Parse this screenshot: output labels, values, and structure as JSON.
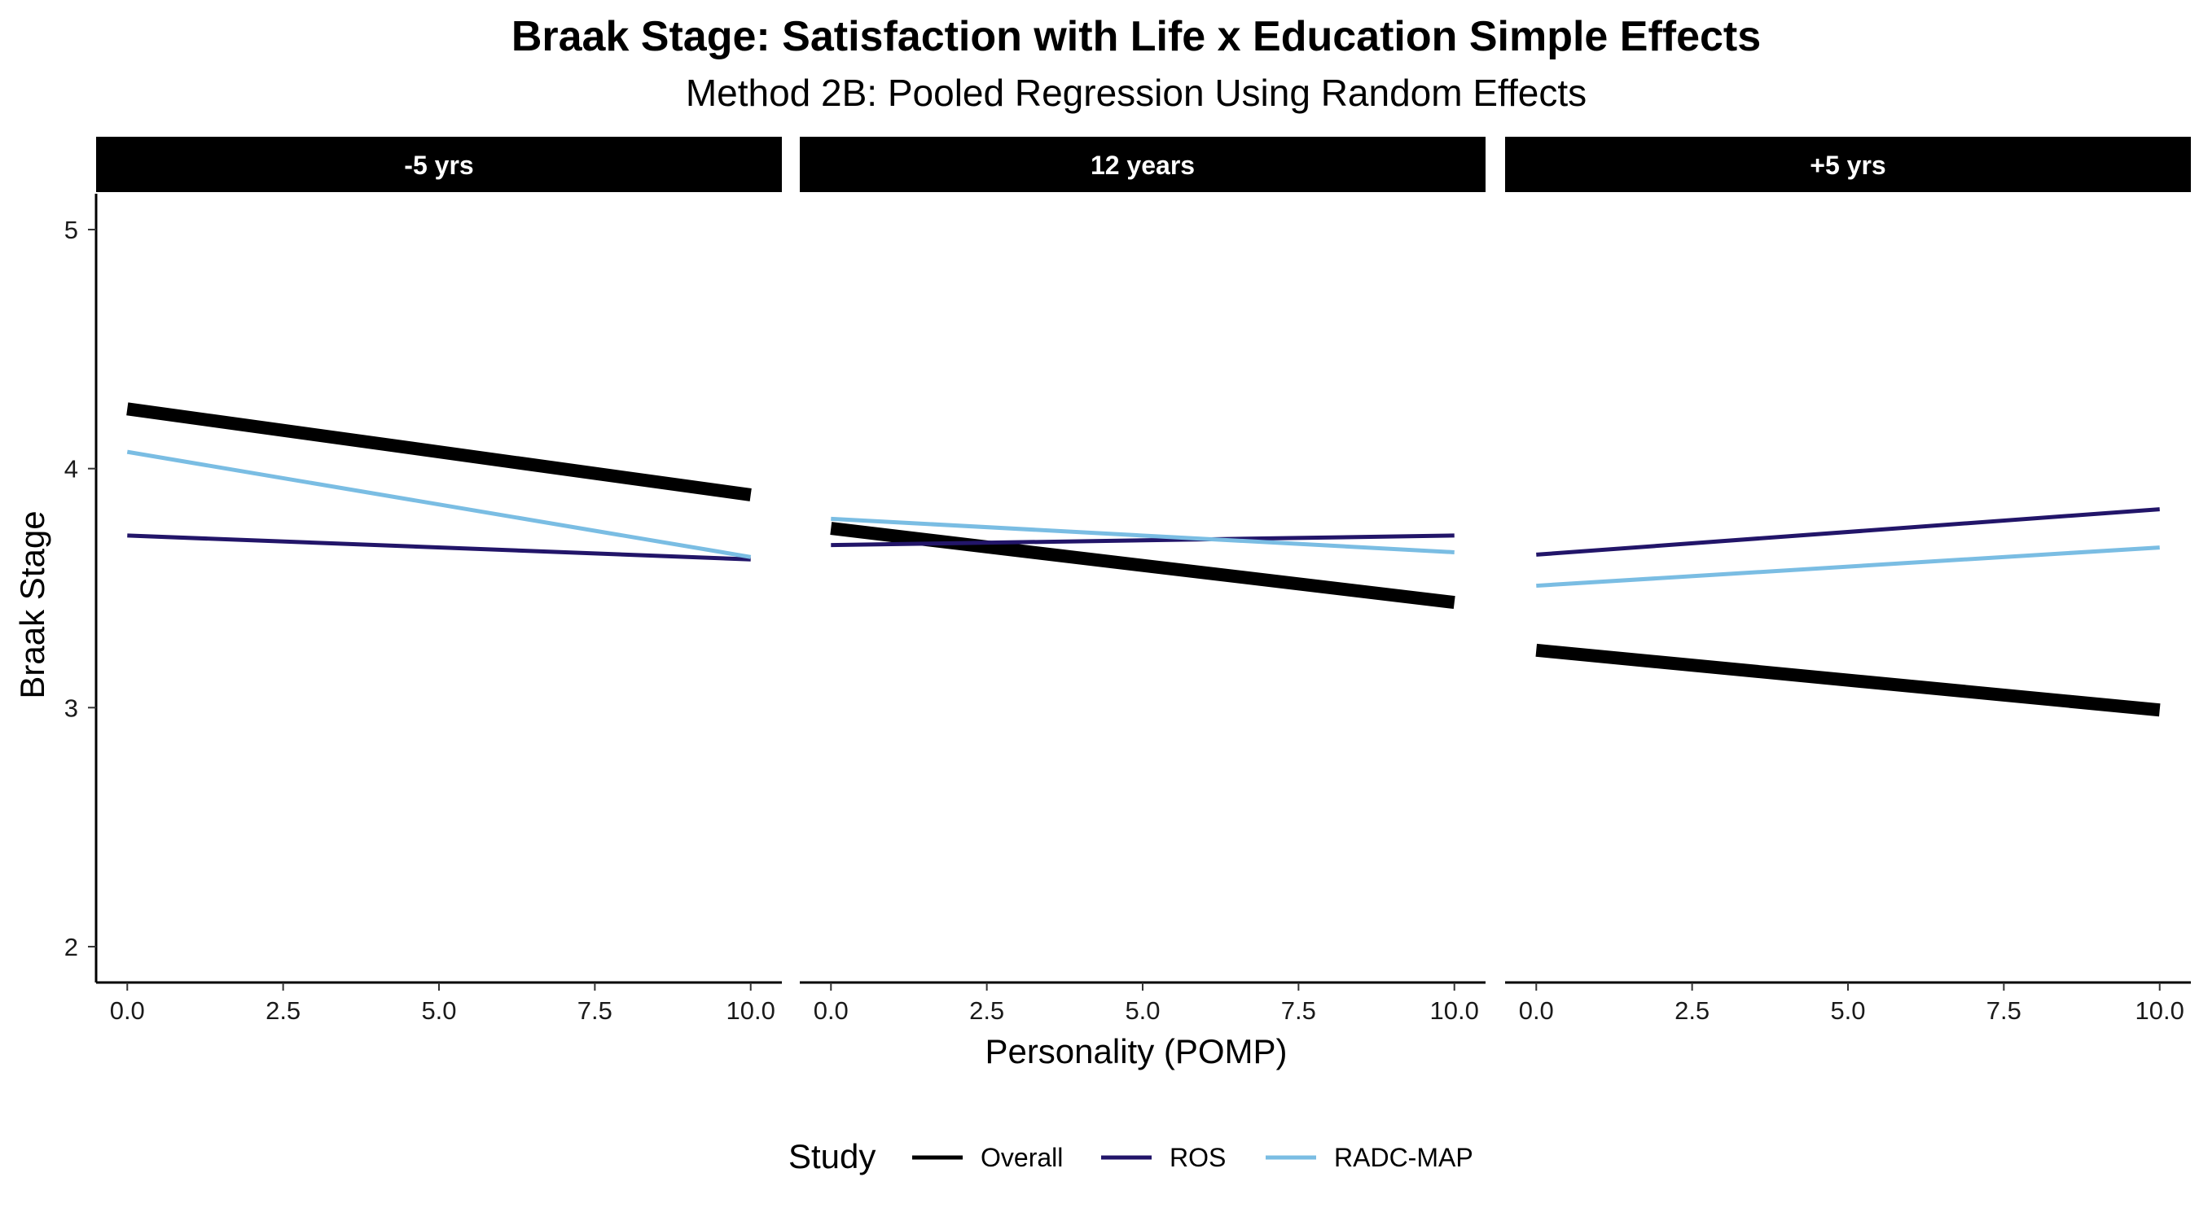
{
  "chart_data": {
    "type": "line",
    "title": "Braak Stage: Satisfaction with Life x Education Simple Effects",
    "subtitle": "Method 2B: Pooled Regression Using Random Effects",
    "xlabel": "Personality (POMP)",
    "ylabel": "Braak Stage",
    "xlim": [
      -0.5,
      10.5
    ],
    "ylim": [
      1.85,
      5.15
    ],
    "x_ticks": [
      0,
      2.5,
      5,
      7.5,
      10
    ],
    "x_tick_labels": [
      "0.0",
      "2.5",
      "5.0",
      "7.5",
      "10.0"
    ],
    "y_ticks": [
      2,
      3,
      4,
      5
    ],
    "y_tick_labels": [
      "2",
      "3",
      "4",
      "5"
    ],
    "grid": false,
    "legend": {
      "title": "Study",
      "placement": "bottom",
      "entries": [
        {
          "name": "Overall",
          "color": "#000000"
        },
        {
          "name": "ROS",
          "color": "#221569"
        },
        {
          "name": "RADC-MAP",
          "color": "#7abde3"
        }
      ]
    },
    "panels": [
      {
        "label": "-5 yrs",
        "series": [
          {
            "name": "Overall",
            "x": [
              0,
              10
            ],
            "y": [
              4.25,
              3.89
            ]
          },
          {
            "name": "ROS",
            "x": [
              0,
              10
            ],
            "y": [
              3.72,
              3.62
            ]
          },
          {
            "name": "RADC-MAP",
            "x": [
              0,
              10
            ],
            "y": [
              4.07,
              3.63
            ]
          }
        ]
      },
      {
        "label": "12 years",
        "series": [
          {
            "name": "Overall",
            "x": [
              0,
              10
            ],
            "y": [
              3.75,
              3.44
            ]
          },
          {
            "name": "ROS",
            "x": [
              0,
              10
            ],
            "y": [
              3.68,
              3.72
            ]
          },
          {
            "name": "RADC-MAP",
            "x": [
              0,
              10
            ],
            "y": [
              3.79,
              3.65
            ]
          }
        ]
      },
      {
        "label": "+5 yrs",
        "series": [
          {
            "name": "Overall",
            "x": [
              0,
              10
            ],
            "y": [
              3.24,
              2.99
            ]
          },
          {
            "name": "ROS",
            "x": [
              0,
              10
            ],
            "y": [
              3.64,
              3.83
            ]
          },
          {
            "name": "RADC-MAP",
            "x": [
              0,
              10
            ],
            "y": [
              3.51,
              3.67
            ]
          }
        ]
      }
    ]
  }
}
